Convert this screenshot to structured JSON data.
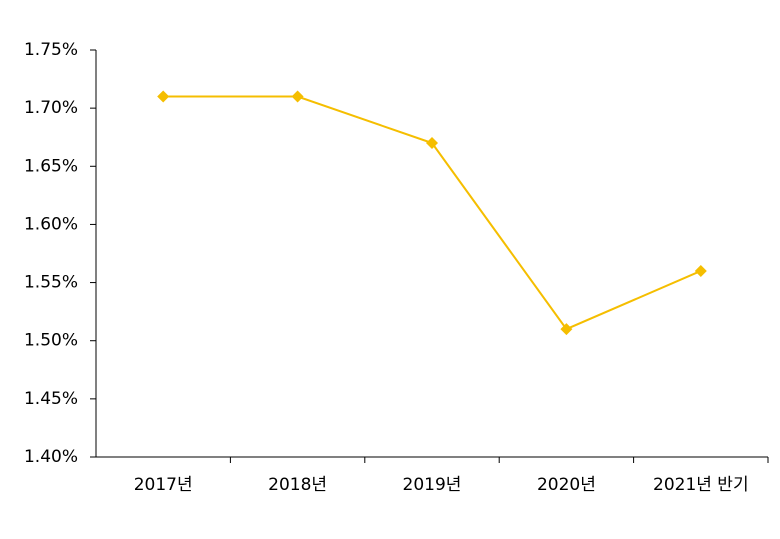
{
  "chart_data": {
    "type": "line",
    "categories": [
      "2017년",
      "2018년",
      "2019년",
      "2020년",
      "2021년 반기"
    ],
    "values": [
      1.71,
      1.71,
      1.67,
      1.51,
      1.56
    ],
    "color": "#f5be00",
    "ylim": [
      1.4,
      1.75
    ],
    "yticks": [
      {
        "value": 1.4,
        "label": "1.40%"
      },
      {
        "value": 1.45,
        "label": "1.45%"
      },
      {
        "value": 1.5,
        "label": "1.50%"
      },
      {
        "value": 1.55,
        "label": "1.55%"
      },
      {
        "value": 1.6,
        "label": "1.60%"
      },
      {
        "value": 1.65,
        "label": "1.65%"
      },
      {
        "value": 1.7,
        "label": "1.70%"
      },
      {
        "value": 1.75,
        "label": "1.75%"
      }
    ],
    "grid": false
  }
}
